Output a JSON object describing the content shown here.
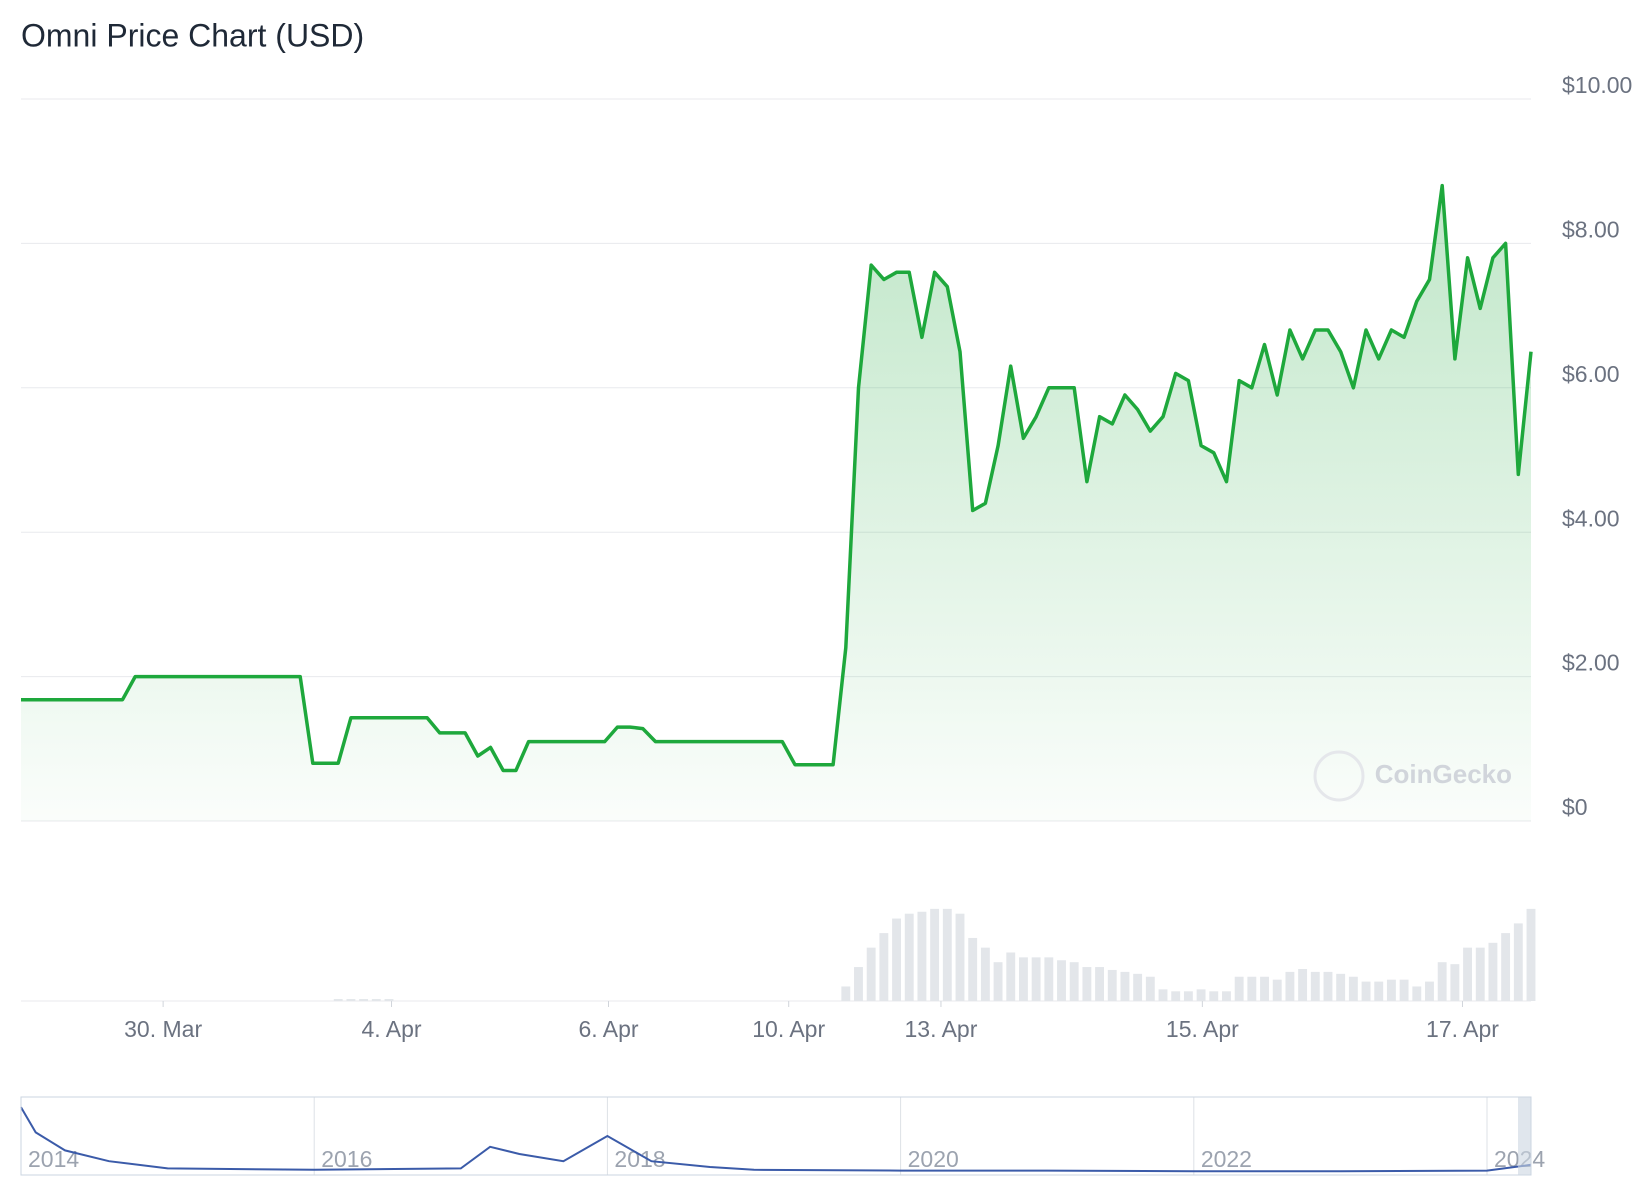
{
  "chart_data": {
    "type": "line",
    "title": "Omni Price Chart (USD)",
    "watermark": "CoinGecko",
    "color": "#1ea83c",
    "grid": true,
    "values": [
      1.68,
      1.68,
      1.68,
      1.68,
      1.68,
      1.68,
      1.68,
      1.68,
      1.68,
      2.0,
      2.0,
      2.0,
      2.0,
      2.0,
      2.0,
      2.0,
      2.0,
      2.0,
      2.0,
      2.0,
      2.0,
      2.0,
      2.0,
      0.8,
      0.8,
      0.8,
      1.43,
      1.43,
      1.43,
      1.43,
      1.43,
      1.43,
      1.43,
      1.22,
      1.22,
      1.22,
      0.9,
      1.02,
      0.7,
      0.7,
      1.1,
      1.1,
      1.1,
      1.1,
      1.1,
      1.1,
      1.1,
      1.3,
      1.3,
      1.28,
      1.1,
      1.1,
      1.1,
      1.1,
      1.1,
      1.1,
      1.1,
      1.1,
      1.1,
      1.1,
      1.1,
      0.78,
      0.78,
      0.78,
      0.78,
      2.4,
      6.0,
      7.7,
      7.5,
      7.6,
      7.6,
      6.7,
      7.6,
      7.4,
      6.5,
      4.3,
      4.4,
      5.2,
      6.3,
      5.3,
      5.6,
      6.0,
      6.0,
      6.0,
      4.7,
      5.6,
      5.5,
      5.9,
      5.7,
      5.4,
      5.6,
      6.2,
      6.1,
      5.2,
      5.1,
      4.7,
      6.1,
      6.0,
      6.6,
      5.9,
      6.8,
      6.4,
      6.8,
      6.8,
      6.5,
      6.0,
      6.8,
      6.4,
      6.8,
      6.7,
      7.2,
      7.5,
      8.8,
      6.4,
      7.8,
      7.1,
      7.8,
      8.0,
      4.8,
      6.5
    ],
    "xlim": [
      0,
      119
    ],
    "xticks": [
      {
        "value": 11.2,
        "label": "30. Mar"
      },
      {
        "value": 29.2,
        "label": "4. Apr"
      },
      {
        "value": 46.3,
        "label": "6. Apr"
      },
      {
        "value": 60.5,
        "label": "10. Apr"
      },
      {
        "value": 72.5,
        "label": "13. Apr"
      },
      {
        "value": 93.1,
        "label": "15. Apr"
      },
      {
        "value": 113.6,
        "label": "17. Apr"
      }
    ],
    "ylim": [
      0,
      10
    ],
    "yticks": [
      {
        "value": 0,
        "label": "$0"
      },
      {
        "value": 2,
        "label": "$2.00"
      },
      {
        "value": 4,
        "label": "$4.00"
      },
      {
        "value": 6,
        "label": "$6.00"
      },
      {
        "value": 8,
        "label": "$8.00"
      },
      {
        "value": 10,
        "label": "$10.00"
      }
    ],
    "volume": {
      "color": "#e3e6ea",
      "ylim": [
        0,
        100
      ],
      "values": [
        0,
        0,
        0,
        0,
        0,
        0,
        0,
        0,
        0,
        0,
        0,
        0,
        0,
        0,
        0,
        0,
        0,
        0,
        0,
        0,
        0,
        0,
        0,
        0,
        0,
        2,
        2,
        2,
        2,
        2,
        0,
        0,
        0,
        0,
        0,
        0,
        0,
        0,
        0,
        0,
        0,
        0,
        0,
        0,
        0,
        0,
        0,
        0,
        0,
        0,
        0,
        0,
        0,
        0,
        0,
        0,
        0,
        0,
        0,
        0,
        0,
        0,
        0,
        0,
        0,
        15,
        35,
        55,
        70,
        85,
        90,
        92,
        95,
        95,
        90,
        65,
        55,
        40,
        50,
        45,
        45,
        45,
        42,
        40,
        35,
        35,
        32,
        30,
        28,
        25,
        12,
        10,
        10,
        12,
        10,
        10,
        25,
        25,
        25,
        22,
        30,
        33,
        30,
        30,
        28,
        25,
        20,
        20,
        22,
        22,
        15,
        20,
        40,
        38,
        55,
        55,
        60,
        70,
        80,
        95
      ]
    },
    "navigator": {
      "color": "#3b5ba9",
      "x": [
        2014,
        2014.1,
        2014.3,
        2014.6,
        2015,
        2016,
        2017,
        2017.2,
        2017.4,
        2017.7,
        2018,
        2018.3,
        2018.7,
        2019,
        2020,
        2021,
        2022,
        2023,
        2024,
        2024.3
      ],
      "values": [
        0.9,
        0.55,
        0.3,
        0.15,
        0.05,
        0.03,
        0.05,
        0.35,
        0.25,
        0.15,
        0.5,
        0.15,
        0.07,
        0.03,
        0.02,
        0.02,
        0.01,
        0.01,
        0.02,
        0.1
      ],
      "xlim": [
        2014,
        2024.3
      ],
      "ylim": [
        0,
        1
      ],
      "xticks": [
        2014,
        2016,
        2018,
        2020,
        2022,
        2024
      ]
    }
  }
}
